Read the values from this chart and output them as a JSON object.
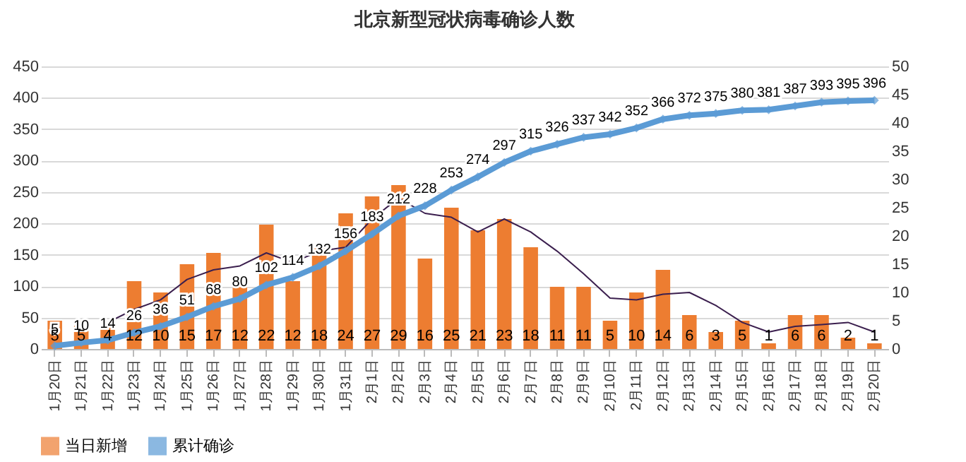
{
  "chart_data": {
    "type": "bar",
    "title": "北京新型冠状病毒确诊人数",
    "categories": [
      "1月20日",
      "1月21日",
      "1月22日",
      "1月23日",
      "1月24日",
      "1月25日",
      "1月26日",
      "1月27日",
      "1月28日",
      "1月29日",
      "1月30日",
      "1月31日",
      "2月1日",
      "2月2日",
      "2月3日",
      "2月4日",
      "2月5日",
      "2月6日",
      "2月7日",
      "2月8日",
      "2月9日",
      "2月10日",
      "2月11日",
      "2月12日",
      "2月13日",
      "2月14日",
      "2月15日",
      "2月16日",
      "2月17日",
      "2月18日",
      "2月19日",
      "2月20日"
    ],
    "series": [
      {
        "name": "当日新增",
        "axis": "y2",
        "color": "#ed7d31",
        "values": [
          5,
          5,
          4,
          12,
          10,
          15,
          17,
          12,
          22,
          12,
          18,
          24,
          27,
          29,
          16,
          25,
          21,
          23,
          18,
          11,
          11,
          5,
          10,
          14,
          6,
          3,
          5,
          1,
          6,
          6,
          2,
          1
        ],
        "value_labels": [
          "5",
          "5",
          "4",
          "12",
          "10",
          "15",
          "17",
          "12",
          "22",
          "12",
          "18",
          "24",
          "27",
          "29",
          "16",
          "25",
          "21",
          "23",
          "18",
          "11",
          "11",
          "5",
          "10",
          "14",
          "6",
          "3",
          "5",
          "1",
          "6",
          "6",
          "2",
          "1"
        ]
      },
      {
        "name": "累计确诊",
        "type": "line",
        "color": "#5b9bd5",
        "marker": "diamond",
        "values": [
          5,
          10,
          14,
          26,
          36,
          51,
          68,
          80,
          102,
          114,
          132,
          156,
          183,
          212,
          228,
          253,
          274,
          297,
          315,
          326,
          337,
          342,
          352,
          366,
          372,
          375,
          380,
          381,
          387,
          393,
          395,
          396
        ],
        "value_labels": [
          "5",
          "10",
          "14",
          "26",
          "36",
          "51",
          "68",
          "80",
          "102",
          "114",
          "132",
          "156",
          "183",
          "212",
          "228",
          "253",
          "274",
          "297",
          "315",
          "326",
          "337",
          "342",
          "352",
          "366",
          "372",
          "375",
          "380",
          "381",
          "387",
          "393",
          "395",
          "396"
        ]
      },
      {
        "type": "line",
        "axis": "y2",
        "color": "#3b1f4e",
        "line_style": "solid",
        "values": [
          null,
          null,
          4.7,
          7,
          8.7,
          12.3,
          14,
          14.7,
          17,
          15.3,
          17.3,
          18,
          23,
          26.7,
          24,
          23.3,
          20.7,
          23,
          20.7,
          17.3,
          13.3,
          9,
          8.7,
          9.7,
          10,
          7.7,
          4.7,
          3,
          4,
          4.3,
          4.7,
          3
        ]
      }
    ],
    "ylim": [
      0,
      450
    ],
    "yticks": [
      0,
      50,
      100,
      150,
      200,
      250,
      300,
      350,
      400,
      450
    ],
    "y2lim": [
      0,
      50
    ],
    "y2ticks": [
      0,
      5,
      10,
      15,
      20,
      25,
      30,
      35,
      40,
      45,
      50
    ],
    "grid": "y",
    "legend": "bottom"
  }
}
